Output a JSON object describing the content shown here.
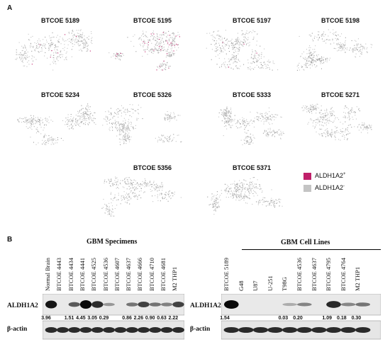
{
  "panel_a": {
    "letter": "A",
    "plots": [
      {
        "title": "BTCOE 5189",
        "pos_fraction": 0.01
      },
      {
        "title": "BTCOE 5195",
        "pos_fraction": 0.12
      },
      {
        "title": "BTCOE 5197",
        "pos_fraction": 0.01
      },
      {
        "title": "BTCOE 5198",
        "pos_fraction": 0.0
      },
      {
        "title": "BTCOE 5234",
        "pos_fraction": 0.0
      },
      {
        "title": "BTCOE 5326",
        "pos_fraction": 0.0
      },
      {
        "title": "BTCOE 5333",
        "pos_fraction": 0.0
      },
      {
        "title": "BTCOE 5271",
        "pos_fraction": 0.0
      },
      {
        "title": "BTCOE 5356",
        "pos_fraction": 0.0
      },
      {
        "title": "BTCOE 5371",
        "pos_fraction": 0.0
      }
    ],
    "legend": {
      "pos_label": "ALDH1A2",
      "pos_sup": "+",
      "pos_color": "#c0206a",
      "neg_label": "ALDH1A2",
      "neg_sup": "-",
      "neg_color": "#c4c4c4"
    }
  },
  "panel_b": {
    "letter": "B",
    "specimens": {
      "heading": "GBM Specimens",
      "lanes": [
        "Normal Brain",
        "BTCOE 4443",
        "BTCOE 4434",
        "BTCOE 4441",
        "BTCOE 4525",
        "BTCOE 4536",
        "BTCOE 4607",
        "BTCOE 4637",
        "BTCOE 4666",
        "BTCOE 4710",
        "BTCOE 4681",
        "M2 THP1"
      ],
      "quant": [
        "3.96",
        "",
        "1.51",
        "4.45",
        "3.05",
        "0.29",
        "",
        "0.86",
        "2.26",
        "0.90",
        "0.63",
        "2.22"
      ]
    },
    "cell_lines": {
      "heading": "GBM Cell Lines",
      "lanes": [
        "BTCOE 5189",
        "G48",
        "U87",
        "U-251",
        "T98G",
        "BTCOE 4536",
        "BTCOE 4637",
        "BTCOE 4795",
        "BTCOE 4764",
        "M2 THP1"
      ],
      "quant": [
        "1.54",
        "",
        "",
        "",
        "0.03",
        "0.20",
        "",
        "1.09",
        "0.18",
        "0.30"
      ]
    },
    "row_labels": {
      "target": "ALDH1A2",
      "loading": "β-actin"
    }
  }
}
